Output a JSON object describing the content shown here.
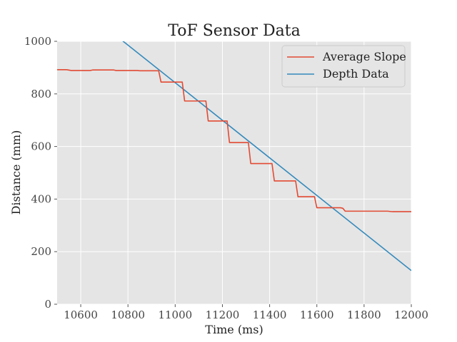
{
  "chart_data": {
    "type": "line",
    "title": "ToF Sensor Data",
    "xlabel": "Time (ms)",
    "ylabel": "Distance (mm)",
    "xlim": [
      10500,
      12000
    ],
    "ylim": [
      0,
      1000
    ],
    "xticks": [
      10600,
      10800,
      11000,
      11200,
      11400,
      11600,
      11800,
      12000
    ],
    "yticks": [
      0,
      200,
      400,
      600,
      800,
      1000
    ],
    "grid": true,
    "legend_position": "top-right",
    "series": [
      {
        "name": "Average Slope",
        "color": "#e24a33",
        "x": [
          10500,
          10540,
          10560,
          10640,
          10650,
          10740,
          10750,
          10840,
          10850,
          10930,
          10940,
          11030,
          11040,
          11130,
          11140,
          11220,
          11230,
          11310,
          11320,
          11410,
          11420,
          11510,
          11520,
          11590,
          11600,
          11700,
          11710,
          11720,
          11800,
          11900,
          11920,
          12000
        ],
        "y": [
          892,
          892,
          889,
          889,
          891,
          891,
          889,
          889,
          888,
          888,
          845,
          845,
          773,
          773,
          697,
          697,
          615,
          615,
          535,
          535,
          469,
          469,
          409,
          409,
          367,
          367,
          365,
          354,
          354,
          354,
          352,
          352
        ]
      },
      {
        "name": "Depth Data",
        "color": "#348abd",
        "x": [
          10500,
          12000
        ],
        "y": [
          1200,
          128
        ]
      }
    ]
  }
}
